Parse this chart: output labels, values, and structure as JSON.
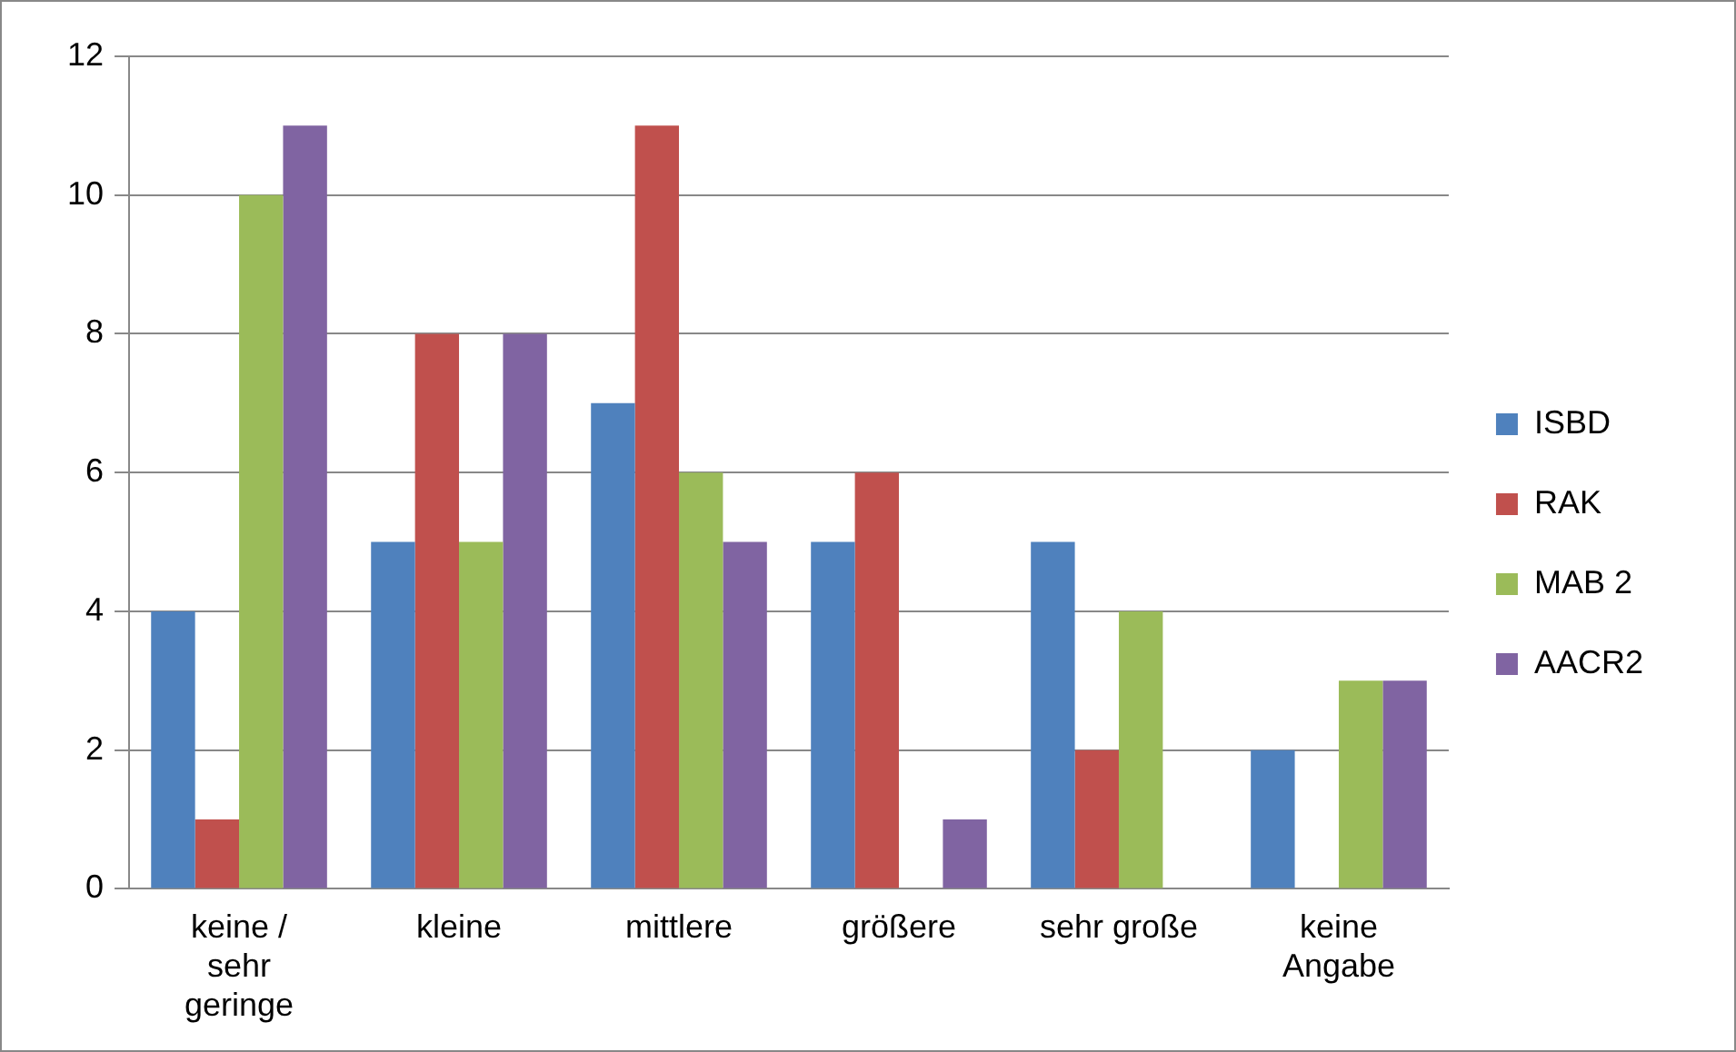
{
  "chart_data": {
    "type": "bar",
    "categories": [
      "keine / sehr geringe",
      "kleine",
      "mittlere",
      "größere",
      "sehr große",
      "keine Angabe"
    ],
    "series": [
      {
        "name": "ISBD",
        "color": "#4f81bd",
        "values": [
          4,
          5,
          7,
          5,
          5,
          2
        ]
      },
      {
        "name": "RAK",
        "color": "#c0504d",
        "values": [
          1,
          8,
          11,
          6,
          2,
          0
        ]
      },
      {
        "name": "MAB 2",
        "color": "#9bbb59",
        "values": [
          10,
          5,
          6,
          0,
          4,
          3
        ]
      },
      {
        "name": "AACR2",
        "color": "#8064a2",
        "values": [
          11,
          8,
          5,
          1,
          0,
          3
        ]
      }
    ],
    "ylim": [
      0,
      12
    ],
    "yticks": [
      0,
      2,
      4,
      6,
      8,
      10,
      12
    ],
    "grid": "y",
    "legend": "right"
  }
}
